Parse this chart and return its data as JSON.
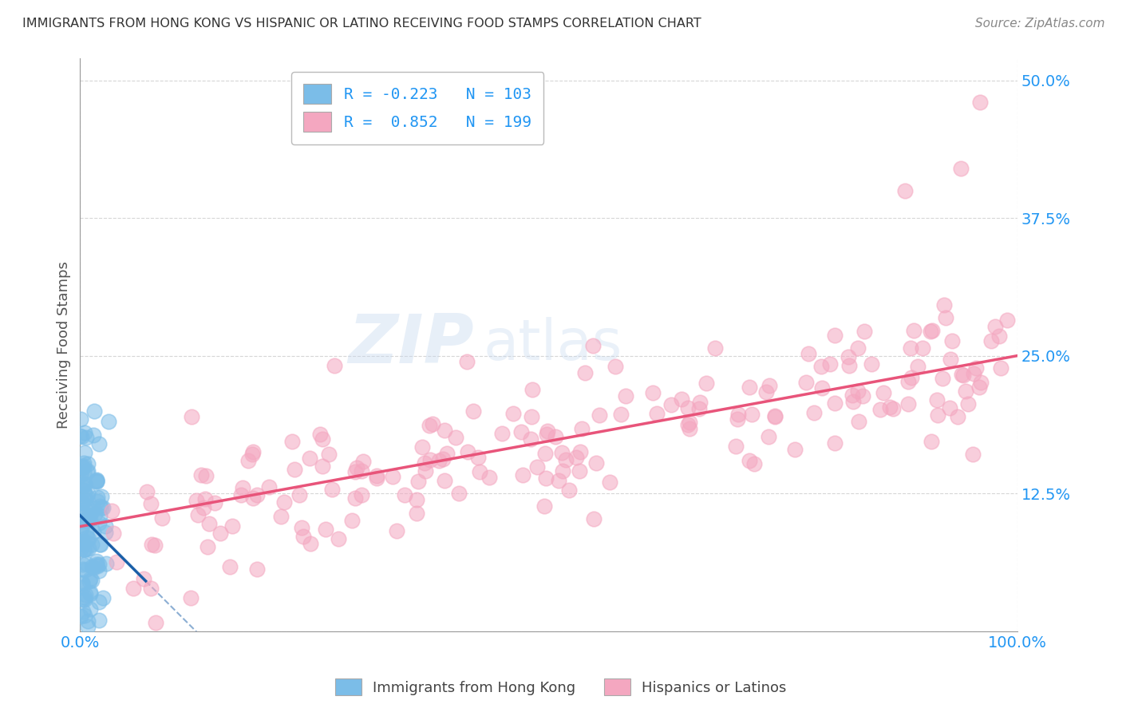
{
  "title": "IMMIGRANTS FROM HONG KONG VS HISPANIC OR LATINO RECEIVING FOOD STAMPS CORRELATION CHART",
  "source": "Source: ZipAtlas.com",
  "ylabel": "Receiving Food Stamps",
  "ytick_values": [
    0.0,
    12.5,
    25.0,
    37.5,
    50.0
  ],
  "legend_bottom": [
    "Immigrants from Hong Kong",
    "Hispanics or Latinos"
  ],
  "r_hk": -0.223,
  "n_hk": 103,
  "r_hl": 0.852,
  "n_hl": 199,
  "color_hk": "#7bbde8",
  "color_hl": "#f4a7c0",
  "color_hk_line": "#1a5fa8",
  "color_hl_line": "#e8547a",
  "watermark_zip": "ZIP",
  "watermark_atlas": "atlas",
  "background_color": "#ffffff",
  "grid_color": "#cccccc",
  "title_color": "#333333",
  "source_color": "#888888",
  "axis_label_color": "#2196F3",
  "legend_text_color": "#2196F3"
}
